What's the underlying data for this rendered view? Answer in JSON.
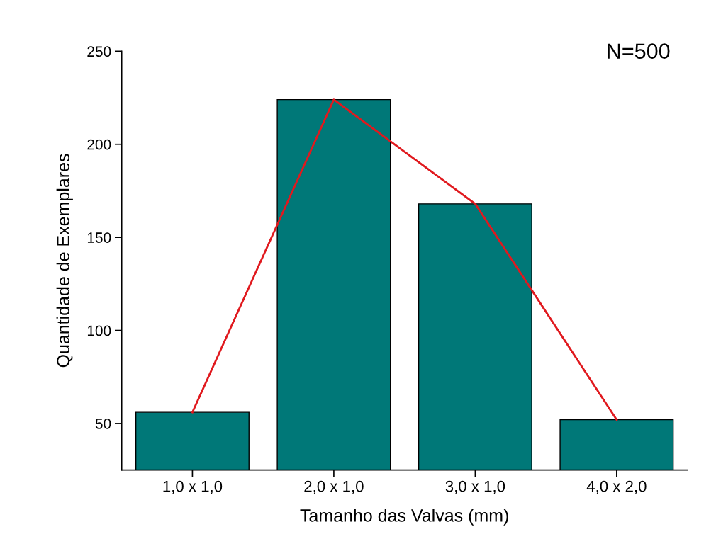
{
  "chart_data": {
    "type": "bar",
    "xlabel": "Tamanho das Valvas (mm)",
    "ylabel": "Quantidade de Exemplares",
    "annotations": [
      "N=500"
    ],
    "categories": [
      "1,0 x 1,0",
      "2,0 x 1,0",
      "3,0 x 1,0",
      "4,0 x 2,0"
    ],
    "series": [
      {
        "color": "#007878",
        "values": [
          56,
          224,
          168,
          52
        ]
      },
      {
        "type": "line",
        "color": "#e0191e",
        "values": [
          56,
          224,
          168,
          52
        ]
      }
    ],
    "ylim": [
      25,
      250
    ],
    "yticks": [
      50,
      100,
      150,
      200,
      250
    ],
    "grid": false,
    "legend": false,
    "marker": "none",
    "line_style": "solid"
  }
}
